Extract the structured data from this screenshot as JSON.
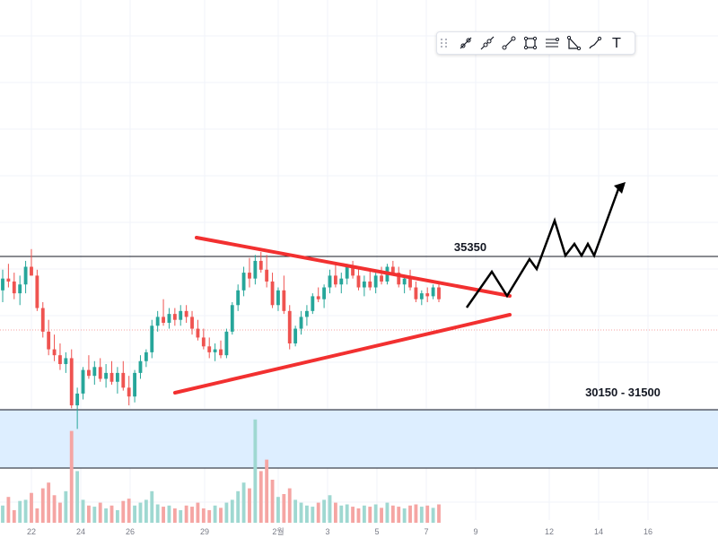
{
  "chart_data": {
    "type": "candlestick",
    "x_tick_labels": [
      "22",
      "24",
      "26",
      "29",
      "2월",
      "3",
      "5",
      "7",
      "9",
      "12",
      "14",
      "16"
    ],
    "levels": [
      {
        "value": 35350,
        "label": "35350"
      }
    ],
    "zones": [
      {
        "from": 30150,
        "to": 31500,
        "label": "30150 - 31500",
        "fill": "#ddeeff"
      }
    ],
    "annotations": {
      "triangle_upper": "descending resistance",
      "triangle_lower": "ascending support",
      "projection": "breakout up"
    },
    "candles": [
      [
        34200,
        34900,
        33800,
        34600
      ],
      [
        34600,
        35100,
        34300,
        34500
      ],
      [
        34500,
        34800,
        33900,
        34100
      ],
      [
        34100,
        34700,
        33700,
        34400
      ],
      [
        34400,
        35200,
        34100,
        35000
      ],
      [
        35000,
        35600,
        34700,
        34700
      ],
      [
        34700,
        34900,
        33500,
        33600
      ],
      [
        33600,
        33800,
        32600,
        32800
      ],
      [
        32800,
        33200,
        32000,
        32200
      ],
      [
        32200,
        32700,
        31800,
        32000
      ],
      [
        32000,
        32400,
        31500,
        31700
      ],
      [
        31700,
        32100,
        31400,
        31900
      ],
      [
        31900,
        32200,
        30200,
        30300
      ],
      [
        30300,
        30900,
        29500,
        30700
      ],
      [
        30700,
        31600,
        30500,
        31500
      ],
      [
        31500,
        32000,
        31200,
        31300
      ],
      [
        31300,
        31800,
        31000,
        31600
      ],
      [
        31600,
        31900,
        31100,
        31200
      ],
      [
        31200,
        31700,
        30900,
        31400
      ],
      [
        31400,
        31800,
        31000,
        31100
      ],
      [
        31100,
        31600,
        30700,
        31400
      ],
      [
        31400,
        31800,
        30800,
        30900
      ],
      [
        30900,
        31300,
        30300,
        30600
      ],
      [
        30600,
        31500,
        30400,
        31400
      ],
      [
        31400,
        32000,
        31200,
        31800
      ],
      [
        31800,
        32200,
        31600,
        32100
      ],
      [
        32100,
        33200,
        31900,
        33000
      ],
      [
        33000,
        33500,
        32800,
        33300
      ],
      [
        33300,
        33900,
        33000,
        33100
      ],
      [
        33100,
        33600,
        32900,
        33400
      ],
      [
        33400,
        33600,
        33000,
        33200
      ],
      [
        33200,
        33700,
        33000,
        33500
      ],
      [
        33500,
        33700,
        33100,
        33300
      ],
      [
        33300,
        33500,
        32700,
        32900
      ],
      [
        32900,
        33200,
        32500,
        32600
      ],
      [
        32600,
        32900,
        32200,
        32300
      ],
      [
        32300,
        32600,
        31900,
        32100
      ],
      [
        32100,
        32400,
        31800,
        32200
      ],
      [
        32200,
        32500,
        31900,
        32000
      ],
      [
        32000,
        32900,
        31900,
        32800
      ],
      [
        32800,
        33800,
        32700,
        33700
      ],
      [
        33700,
        34400,
        33500,
        34200
      ],
      [
        34200,
        35000,
        34000,
        34800
      ],
      [
        34800,
        35300,
        34300,
        34600
      ],
      [
        34600,
        35400,
        34400,
        35200
      ],
      [
        35200,
        35500,
        34800,
        34900
      ],
      [
        34900,
        35400,
        34300,
        34500
      ],
      [
        34500,
        34800,
        33600,
        33700
      ],
      [
        33700,
        34300,
        33500,
        34200
      ],
      [
        34200,
        34700,
        33400,
        33500
      ],
      [
        33500,
        33700,
        32200,
        32400
      ],
      [
        32400,
        33000,
        32300,
        32900
      ],
      [
        32900,
        33500,
        32700,
        33300
      ],
      [
        33300,
        33700,
        33000,
        33500
      ],
      [
        33500,
        34100,
        33400,
        34000
      ],
      [
        34000,
        34300,
        33800,
        33900
      ],
      [
        33900,
        34400,
        33600,
        34300
      ],
      [
        34300,
        34900,
        34100,
        34700
      ],
      [
        34700,
        35100,
        34300,
        34400
      ],
      [
        34400,
        34800,
        34100,
        34600
      ],
      [
        34600,
        35100,
        34400,
        35000
      ],
      [
        35000,
        35200,
        34600,
        34700
      ],
      [
        34700,
        35000,
        34200,
        34300
      ],
      [
        34300,
        34700,
        34000,
        34500
      ],
      [
        34500,
        34900,
        34200,
        34300
      ],
      [
        34300,
        34800,
        34100,
        34700
      ],
      [
        34700,
        35000,
        34400,
        34500
      ],
      [
        34500,
        35100,
        34400,
        35000
      ],
      [
        35000,
        35200,
        34700,
        34800
      ],
      [
        34800,
        35000,
        34300,
        34400
      ],
      [
        34400,
        34700,
        34100,
        34600
      ],
      [
        34600,
        34900,
        34200,
        34300
      ],
      [
        34300,
        34500,
        33800,
        33900
      ],
      [
        33900,
        34200,
        33700,
        34100
      ],
      [
        34100,
        34300,
        33800,
        34000
      ],
      [
        34000,
        34400,
        33900,
        34300
      ],
      [
        34300,
        34500,
        33800,
        33900
      ]
    ],
    "volumes": [
      0.3,
      0.45,
      0.22,
      0.38,
      0.4,
      0.52,
      0.25,
      0.6,
      0.7,
      0.48,
      0.35,
      0.55,
      1.6,
      0.9,
      0.4,
      0.3,
      0.28,
      0.35,
      0.25,
      0.3,
      0.22,
      0.38,
      0.42,
      0.3,
      0.35,
      0.4,
      0.55,
      0.32,
      0.28,
      0.3,
      0.25,
      0.22,
      0.3,
      0.28,
      0.35,
      0.25,
      0.22,
      0.3,
      0.26,
      0.35,
      0.4,
      0.55,
      0.7,
      0.6,
      1.8,
      0.9,
      1.1,
      0.75,
      0.45,
      0.5,
      0.6,
      0.4,
      0.35,
      0.3,
      0.28,
      0.35,
      0.4,
      0.48,
      0.35,
      0.3,
      0.32,
      0.28,
      0.25,
      0.3,
      0.28,
      0.32,
      0.26,
      0.35,
      0.3,
      0.28,
      0.25,
      0.3,
      0.32,
      0.28,
      0.3,
      0.26,
      0.32
    ],
    "colors": {
      "up": "#26a69a",
      "down": "#ef5350",
      "volume_up": "#9fd8d1",
      "volume_down": "#f5a5a3",
      "trendline": "#f23030",
      "projection": "#000000",
      "zone_fill": "#ddeeff",
      "level_line": "#131722"
    }
  },
  "toolbar": {
    "tools": [
      {
        "name": "trend-line-angle-tool-icon"
      },
      {
        "name": "ray-tool-icon"
      },
      {
        "name": "trend-line-tool-icon"
      },
      {
        "name": "rectangle-tool-icon"
      },
      {
        "name": "parallel-channel-tool-icon"
      },
      {
        "name": "triangle-pattern-tool-icon"
      },
      {
        "name": "brush-tool-icon"
      },
      {
        "name": "text-tool-icon",
        "glyph": "T"
      }
    ]
  }
}
